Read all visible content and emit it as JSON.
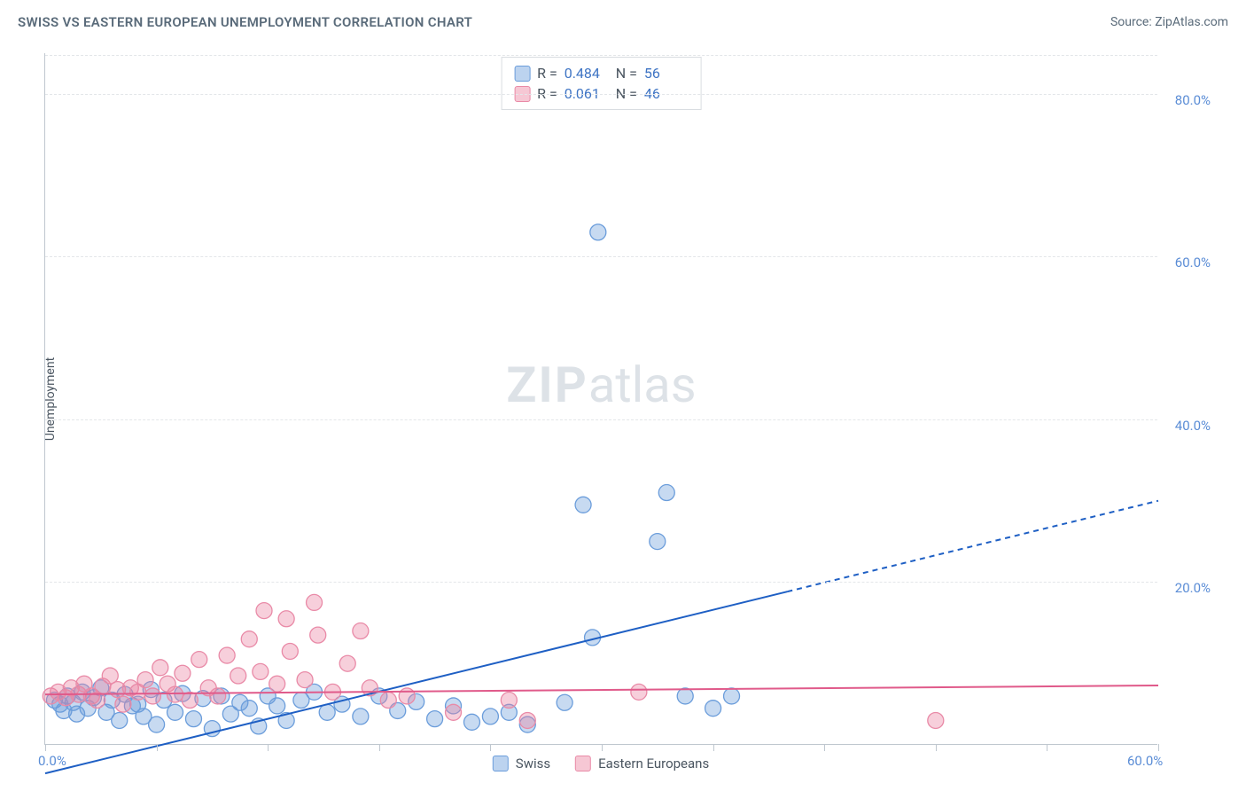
{
  "header": {
    "title": "SWISS VS EASTERN EUROPEAN UNEMPLOYMENT CORRELATION CHART",
    "source": "Source: ZipAtlas.com"
  },
  "watermark": {
    "zip": "ZIP",
    "atlas": "atlas"
  },
  "chart": {
    "type": "scatter",
    "ylabel": "Unemployment",
    "xlim": [
      0,
      60
    ],
    "ylim": [
      0,
      85
    ],
    "xtick_positions": [
      0,
      6,
      12,
      18,
      24,
      30,
      36,
      42,
      48,
      54,
      60
    ],
    "xtick_labels": {
      "0": "0.0%",
      "60": "60.0%"
    },
    "ytick_positions": [
      20,
      40,
      60,
      80
    ],
    "ytick_labels": {
      "20": "20.0%",
      "40": "40.0%",
      "60": "60.0%",
      "80": "80.0%"
    },
    "gridline_color": "#e3e6e9",
    "axis_color": "#bfc7cf",
    "background_color": "#ffffff",
    "marker_radius": 9,
    "marker_stroke_width": 1.3,
    "series": [
      {
        "name": "Swiss",
        "fill": "rgba(107,157,219,0.38)",
        "stroke": "#6b9ddb",
        "r": 0.484,
        "n": 56,
        "regression": {
          "x1": 0,
          "y1": -3.5,
          "x2": 60,
          "y2": 30.0,
          "solid_until_x": 40,
          "color": "#1e5fc4",
          "width": 2
        },
        "points": [
          [
            0.5,
            5.5
          ],
          [
            0.8,
            5.0
          ],
          [
            1.0,
            4.2
          ],
          [
            1.2,
            6.0
          ],
          [
            1.5,
            5.2
          ],
          [
            1.7,
            3.8
          ],
          [
            2.0,
            6.5
          ],
          [
            2.3,
            4.5
          ],
          [
            2.6,
            5.8
          ],
          [
            3.0,
            7.0
          ],
          [
            3.3,
            4.0
          ],
          [
            3.6,
            5.5
          ],
          [
            4.0,
            3.0
          ],
          [
            4.3,
            6.2
          ],
          [
            4.7,
            4.8
          ],
          [
            5.0,
            5.0
          ],
          [
            5.3,
            3.5
          ],
          [
            5.7,
            6.8
          ],
          [
            6.0,
            2.5
          ],
          [
            6.4,
            5.5
          ],
          [
            7.0,
            4.0
          ],
          [
            7.4,
            6.3
          ],
          [
            8.0,
            3.2
          ],
          [
            8.5,
            5.7
          ],
          [
            9.0,
            2.0
          ],
          [
            9.5,
            6.0
          ],
          [
            10.0,
            3.8
          ],
          [
            10.5,
            5.2
          ],
          [
            11.0,
            4.5
          ],
          [
            11.5,
            2.3
          ],
          [
            12.0,
            6.0
          ],
          [
            12.5,
            4.8
          ],
          [
            13.0,
            3.0
          ],
          [
            13.8,
            5.5
          ],
          [
            14.5,
            6.5
          ],
          [
            15.2,
            4.0
          ],
          [
            16.0,
            5.0
          ],
          [
            17.0,
            3.5
          ],
          [
            18.0,
            6.0
          ],
          [
            19.0,
            4.2
          ],
          [
            20.0,
            5.3
          ],
          [
            21.0,
            3.2
          ],
          [
            22.0,
            4.8
          ],
          [
            23.0,
            2.8
          ],
          [
            24.0,
            3.5
          ],
          [
            25.0,
            4.0
          ],
          [
            26.0,
            2.5
          ],
          [
            28.0,
            5.2
          ],
          [
            29.5,
            13.2
          ],
          [
            29.0,
            29.5
          ],
          [
            29.8,
            63.0
          ],
          [
            33.0,
            25.0
          ],
          [
            33.5,
            31.0
          ],
          [
            34.5,
            6.0
          ],
          [
            36.0,
            4.5
          ],
          [
            37.0,
            6.0
          ]
        ]
      },
      {
        "name": "Eastern Europeans",
        "fill": "rgba(235,130,160,0.38)",
        "stroke": "#e98aa7",
        "r": 0.061,
        "n": 46,
        "regression": {
          "x1": 0,
          "y1": 6.2,
          "x2": 60,
          "y2": 7.3,
          "solid_until_x": 60,
          "color": "#e05a8a",
          "width": 2
        },
        "points": [
          [
            0.3,
            6.0
          ],
          [
            0.7,
            6.5
          ],
          [
            1.1,
            5.8
          ],
          [
            1.4,
            7.0
          ],
          [
            1.8,
            6.2
          ],
          [
            2.1,
            7.5
          ],
          [
            2.5,
            6.0
          ],
          [
            2.8,
            5.5
          ],
          [
            3.1,
            7.2
          ],
          [
            3.5,
            8.5
          ],
          [
            3.9,
            6.8
          ],
          [
            4.2,
            5.0
          ],
          [
            4.6,
            7.0
          ],
          [
            5.0,
            6.5
          ],
          [
            5.4,
            8.0
          ],
          [
            5.8,
            6.0
          ],
          [
            6.2,
            9.5
          ],
          [
            6.6,
            7.5
          ],
          [
            7.0,
            6.2
          ],
          [
            7.4,
            8.8
          ],
          [
            7.8,
            5.5
          ],
          [
            8.3,
            10.5
          ],
          [
            8.8,
            7.0
          ],
          [
            9.3,
            6.0
          ],
          [
            9.8,
            11.0
          ],
          [
            10.4,
            8.5
          ],
          [
            11.0,
            13.0
          ],
          [
            11.6,
            9.0
          ],
          [
            11.8,
            16.5
          ],
          [
            12.5,
            7.5
          ],
          [
            13.2,
            11.5
          ],
          [
            13.0,
            15.5
          ],
          [
            14.0,
            8.0
          ],
          [
            14.7,
            13.5
          ],
          [
            14.5,
            17.5
          ],
          [
            15.5,
            6.5
          ],
          [
            16.3,
            10.0
          ],
          [
            17.0,
            14.0
          ],
          [
            17.5,
            7.0
          ],
          [
            18.5,
            5.5
          ],
          [
            19.5,
            6.0
          ],
          [
            22.0,
            4.0
          ],
          [
            25.0,
            5.5
          ],
          [
            26.0,
            3.0
          ],
          [
            32.0,
            6.5
          ],
          [
            48.0,
            3.0
          ]
        ]
      }
    ]
  },
  "stats_legend": {
    "r_label": "R =",
    "n_label": "N =",
    "rows": [
      {
        "swatch": "blue",
        "r": "0.484",
        "n": "56"
      },
      {
        "swatch": "pink",
        "r": "0.061",
        "n": "46"
      }
    ]
  },
  "bottom_legend": {
    "items": [
      {
        "swatch": "blue",
        "label": "Swiss"
      },
      {
        "swatch": "pink",
        "label": "Eastern Europeans"
      }
    ]
  }
}
